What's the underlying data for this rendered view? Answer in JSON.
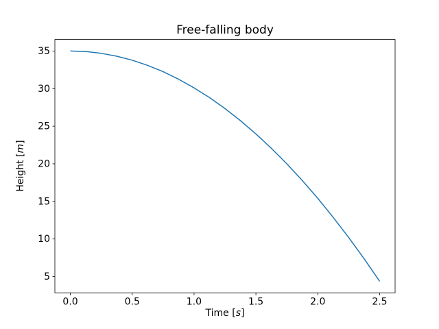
{
  "chart_data": {
    "type": "line",
    "title": "Free-falling body",
    "xlabel": {
      "prefix": "Time [",
      "unit": "s",
      "suffix": "]"
    },
    "ylabel": {
      "prefix": "Height [",
      "unit": "m",
      "suffix": "]"
    },
    "series": [
      {
        "name": "height",
        "x": [
          0.0,
          0.125,
          0.25,
          0.375,
          0.5,
          0.625,
          0.75,
          0.875,
          1.0,
          1.125,
          1.25,
          1.375,
          1.5,
          1.625,
          1.75,
          1.875,
          2.0,
          2.125,
          2.25,
          2.375,
          2.5
        ],
        "y": [
          35.0,
          34.9234,
          34.6938,
          34.3109,
          33.775,
          33.0859,
          32.2438,
          31.2484,
          30.1,
          28.7984,
          27.3438,
          25.7359,
          23.975,
          22.0609,
          19.9938,
          17.7734,
          15.4,
          12.8734,
          10.1938,
          7.3609,
          4.375
        ],
        "color": "#1f77b4",
        "linewidth": 1.5
      }
    ],
    "xlim": [
      -0.125,
      2.625
    ],
    "ylim": [
      2.8438,
      36.5313
    ],
    "xticks": {
      "values": [
        0.0,
        0.5,
        1.0,
        1.5,
        2.0,
        2.5
      ],
      "labels": [
        "0.0",
        "0.5",
        "1.0",
        "1.5",
        "2.0",
        "2.5"
      ]
    },
    "yticks": {
      "values": [
        5,
        10,
        15,
        20,
        25,
        30,
        35
      ],
      "labels": [
        "5",
        "10",
        "15",
        "20",
        "25",
        "30",
        "35"
      ]
    },
    "grid": false,
    "legend": null,
    "background_color": "#ffffff",
    "spine_color": "#000000"
  }
}
